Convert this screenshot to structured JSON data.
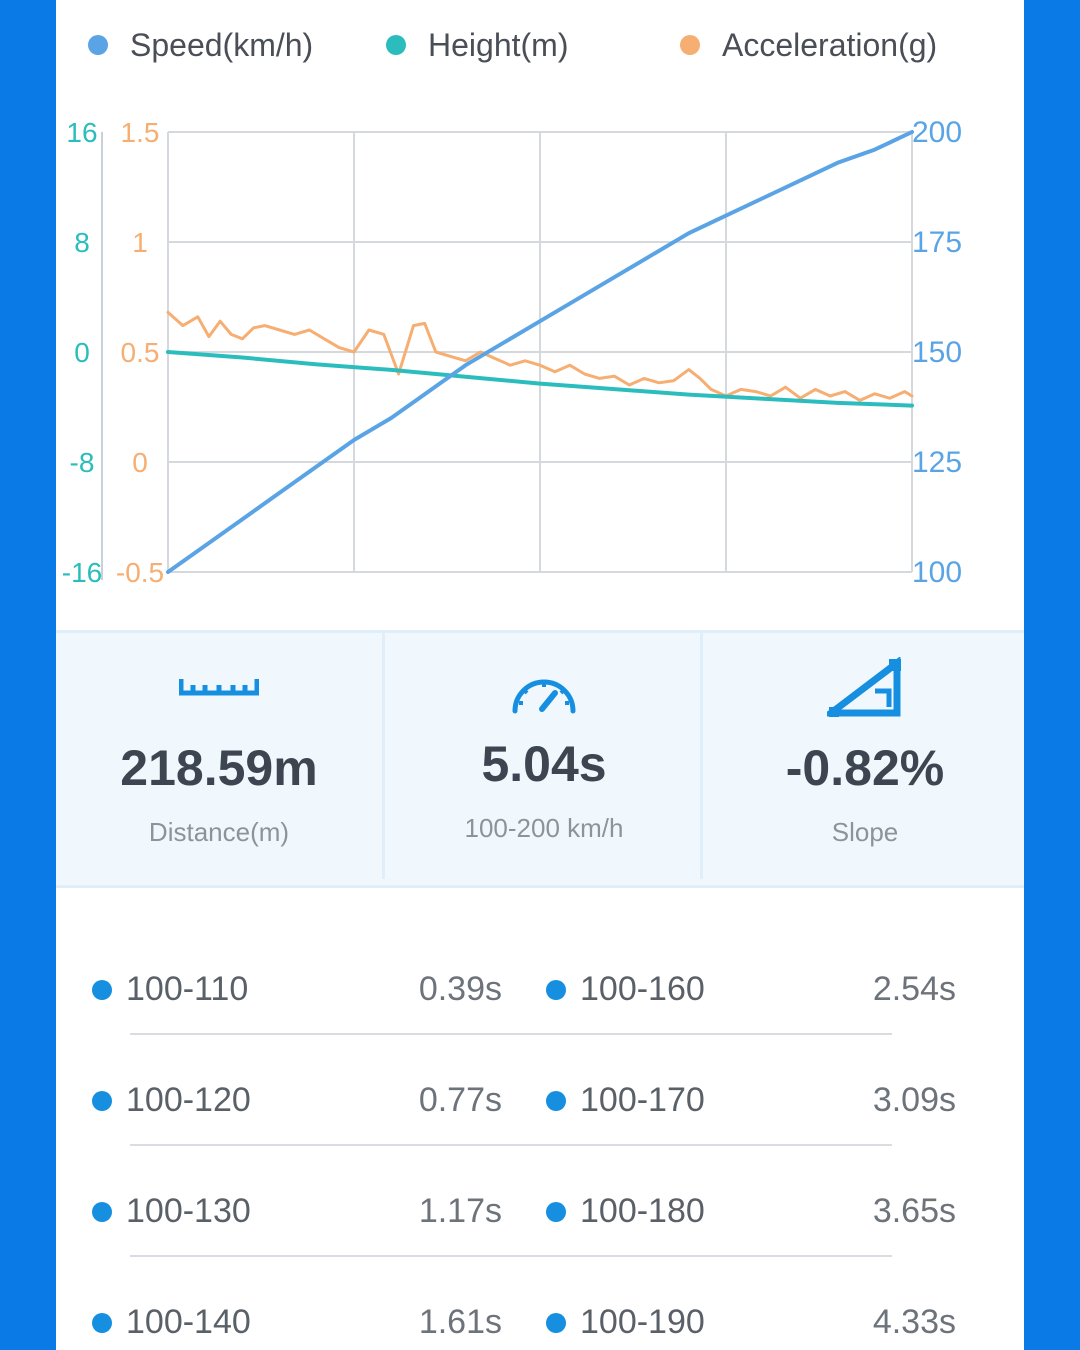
{
  "legend": [
    {
      "label": "Speed(km/h)",
      "color": "#5aa4e6"
    },
    {
      "label": "Height(m)",
      "color": "#2bbdbd"
    },
    {
      "label": "Acceleration(g)",
      "color": "#f6ae72"
    }
  ],
  "chart_data": {
    "type": "line",
    "axes": {
      "height_ticks": [
        "16",
        "8",
        "0",
        "-8",
        "-16"
      ],
      "height_range": [
        -16,
        16
      ],
      "acceleration_ticks": [
        "1.5",
        "1",
        "0.5",
        "0",
        "-0.5"
      ],
      "acceleration_range": [
        -0.5,
        1.5
      ],
      "speed_ticks": [
        "200",
        "175",
        "150",
        "125",
        "100"
      ],
      "speed_range": [
        100,
        200
      ]
    },
    "grid": true,
    "x_range": [
      0,
      100
    ],
    "series": [
      {
        "name": "Speed(km/h)",
        "color": "#5aa4e6",
        "axis": "speed",
        "x": [
          0,
          5,
          10,
          15,
          20,
          25,
          30,
          35,
          40,
          45,
          50,
          55,
          60,
          65,
          70,
          75,
          80,
          85,
          90,
          95,
          100
        ],
        "y": [
          100,
          106,
          112,
          118,
          124,
          130,
          135,
          141,
          147,
          152,
          157,
          162,
          167,
          172,
          177,
          181,
          185,
          189,
          193,
          196,
          200
        ]
      },
      {
        "name": "Height(m)",
        "color": "#2bbdbd",
        "axis": "height",
        "x": [
          0,
          10,
          20,
          30,
          40,
          50,
          60,
          70,
          80,
          90,
          100
        ],
        "y": [
          0,
          -0.4,
          -0.9,
          -1.3,
          -1.8,
          -2.3,
          -2.7,
          -3.1,
          -3.4,
          -3.7,
          -3.9
        ]
      },
      {
        "name": "Acceleration(g)",
        "color": "#f6ae72",
        "axis": "acceleration",
        "x": [
          0,
          2,
          4,
          5.5,
          7,
          8.5,
          10,
          11.5,
          13,
          15,
          17,
          19,
          21,
          23,
          25,
          27,
          29,
          31,
          33,
          34.5,
          36,
          38,
          40,
          42,
          44,
          46,
          48,
          50,
          52,
          54,
          56,
          58,
          60,
          62,
          64,
          66,
          68,
          70,
          71.5,
          73,
          75,
          77,
          79,
          81,
          83,
          85,
          87,
          89,
          91,
          93,
          95,
          97,
          99,
          100
        ],
        "y": [
          0.68,
          0.62,
          0.66,
          0.57,
          0.64,
          0.58,
          0.56,
          0.61,
          0.62,
          0.6,
          0.58,
          0.6,
          0.56,
          0.52,
          0.5,
          0.6,
          0.58,
          0.4,
          0.62,
          0.63,
          0.5,
          0.48,
          0.46,
          0.5,
          0.47,
          0.44,
          0.46,
          0.44,
          0.41,
          0.44,
          0.4,
          0.38,
          0.39,
          0.35,
          0.38,
          0.36,
          0.37,
          0.42,
          0.38,
          0.33,
          0.3,
          0.33,
          0.32,
          0.3,
          0.34,
          0.29,
          0.33,
          0.3,
          0.32,
          0.28,
          0.31,
          0.29,
          0.32,
          0.3
        ]
      }
    ]
  },
  "stats": [
    {
      "icon": "ruler-icon",
      "value": "218.59m",
      "label": "Distance(m)"
    },
    {
      "icon": "speedometer-icon",
      "value": "5.04s",
      "label": "100-200 km/h"
    },
    {
      "icon": "slope-icon",
      "value": "-0.82%",
      "label": "Slope"
    }
  ],
  "splits": [
    {
      "left": {
        "range": "100-110",
        "time": "0.39s"
      },
      "right": {
        "range": "100-160",
        "time": "2.54s"
      }
    },
    {
      "left": {
        "range": "100-120",
        "time": "0.77s"
      },
      "right": {
        "range": "100-170",
        "time": "3.09s"
      }
    },
    {
      "left": {
        "range": "100-130",
        "time": "1.17s"
      },
      "right": {
        "range": "100-180",
        "time": "3.65s"
      }
    },
    {
      "left": {
        "range": "100-140",
        "time": "1.61s"
      },
      "right": {
        "range": "100-190",
        "time": "4.33s"
      }
    }
  ],
  "colors": {
    "frame": "#0a7be6",
    "accent": "#178fe0",
    "stat_bg": "#f1f8fd"
  }
}
